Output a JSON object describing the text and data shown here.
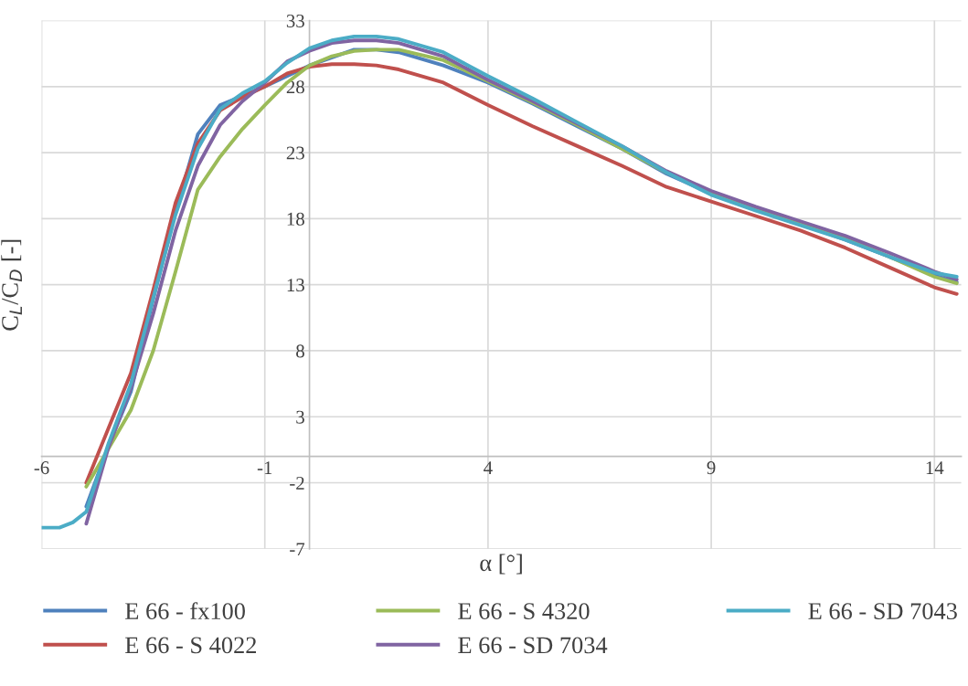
{
  "chart_data": {
    "type": "line",
    "xlabel": "α [°]",
    "ylabel": "C$_{L}$/C$_{D}$ [-]",
    "xlim": [
      -6,
      14.6
    ],
    "ylim": [
      -7,
      33
    ],
    "xticks": [
      -6,
      -1,
      4,
      9,
      14
    ],
    "yticks": [
      -7,
      -2,
      3,
      8,
      13,
      18,
      23,
      28,
      33
    ],
    "grid": true,
    "legend": "bottom",
    "marker": "none",
    "line_style": "solid",
    "series": [
      {
        "name": "E 66 - fx100",
        "color": "#4f81bd",
        "x": [
          -5,
          -4.5,
          -4,
          -3.5,
          -3,
          -2.5,
          -2,
          -1,
          0,
          1,
          1.5,
          2,
          3,
          4,
          5,
          6,
          7,
          8,
          9,
          10,
          11,
          12,
          13,
          14,
          14.5
        ],
        "values": [
          -3.8,
          0.8,
          4.9,
          11.9,
          18.5,
          24.4,
          26.6,
          28,
          29.6,
          30.8,
          30.8,
          30.6,
          29.6,
          28.3,
          26.7,
          25,
          23.3,
          21.4,
          19.9,
          18.7,
          17.6,
          16.4,
          15.1,
          13.7,
          13.2
        ]
      },
      {
        "name": "E 66 - S 4022",
        "color": "#c0504d",
        "x": [
          -5,
          -4,
          -3.5,
          -3,
          -2.5,
          -2,
          -1.5,
          -1,
          -0.5,
          0,
          0.5,
          1,
          1.5,
          2,
          3,
          4,
          5,
          6,
          7,
          8,
          9,
          10,
          11,
          12,
          13,
          14,
          14.5
        ],
        "values": [
          -2.0,
          6.3,
          12.6,
          19.2,
          23.7,
          26.2,
          27.2,
          28,
          29,
          29.5,
          29.7,
          29.7,
          29.6,
          29.3,
          28.3,
          26.6,
          25,
          23.5,
          22,
          20.4,
          19.3,
          18.2,
          17.1,
          15.8,
          14.3,
          12.8,
          12.3
        ]
      },
      {
        "name": "E 66 - S 4320",
        "color": "#9bbb59",
        "x": [
          -5,
          -4,
          -3.5,
          -3,
          -2.5,
          -2,
          -1.5,
          -1,
          -0.5,
          0,
          0.5,
          1,
          1.5,
          2,
          3,
          4,
          5,
          6,
          7,
          8,
          9,
          10,
          11,
          12,
          13,
          14,
          14.5
        ],
        "values": [
          -2.3,
          3.5,
          8,
          14,
          20.2,
          22.7,
          24.8,
          26.6,
          28.3,
          29.6,
          30.3,
          30.7,
          30.8,
          30.8,
          30,
          28.4,
          26.8,
          25.1,
          23.3,
          21.5,
          20,
          18.8,
          17.7,
          16.5,
          15.1,
          13.6,
          13.1
        ]
      },
      {
        "name": "E 66 - SD 7034",
        "color": "#8064a2",
        "x": [
          -5,
          -4.5,
          -4,
          -3.5,
          -3,
          -2.5,
          -2,
          -1.5,
          -1,
          -0.5,
          0,
          0.5,
          1,
          1.5,
          2,
          3,
          4,
          5,
          6,
          7,
          8,
          9,
          10,
          11,
          12,
          13,
          14,
          14.5
        ],
        "values": [
          -5.1,
          0.7,
          5.2,
          10.8,
          17.1,
          22,
          25.1,
          26.9,
          28.3,
          29.9,
          30.7,
          31.3,
          31.5,
          31.5,
          31.3,
          30.3,
          28.5,
          26.9,
          25.2,
          23.5,
          21.6,
          20.1,
          18.9,
          17.8,
          16.7,
          15.4,
          14,
          13.4
        ]
      },
      {
        "name": "E 66 - SD 7043",
        "color": "#4bacc6",
        "x": [
          -6,
          -5.6,
          -5.3,
          -5,
          -4.5,
          -4,
          -3.5,
          -3,
          -2.5,
          -2,
          -1.5,
          -1,
          -0.5,
          0,
          0.5,
          1,
          1.5,
          2,
          3,
          4,
          5,
          6,
          7,
          8,
          9,
          10,
          11,
          12,
          13,
          14,
          14.5
        ],
        "values": [
          -5.4,
          -5.4,
          -5.0,
          -4.2,
          1.0,
          5.5,
          12,
          18.3,
          23.3,
          26.3,
          27.5,
          28.4,
          29.8,
          30.9,
          31.5,
          31.8,
          31.8,
          31.6,
          30.6,
          28.8,
          27.1,
          25.3,
          23.5,
          21.5,
          19.8,
          18.6,
          17.5,
          16.4,
          15.1,
          13.9,
          13.6
        ]
      }
    ]
  }
}
